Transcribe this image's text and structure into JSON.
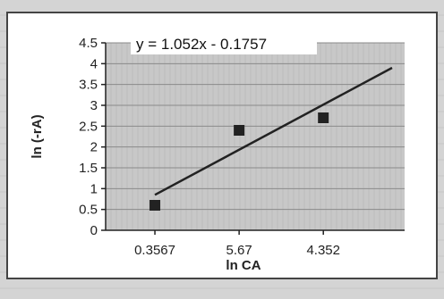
{
  "chart_data": {
    "type": "scatter",
    "categories": [
      "0.3567",
      "5.67",
      "4.352"
    ],
    "series": [
      {
        "values": [
          0.6,
          2.4,
          2.7
        ]
      }
    ],
    "trendline": {
      "equation": "y = 1.052x - 0.1757",
      "start": 0.85,
      "end": 3.9
    },
    "xlabel": "ln CA",
    "ylabel": "ln (-rA)",
    "ylim": [
      0,
      4.5
    ],
    "yticks": [
      "0",
      "0.5",
      "1",
      "1.5",
      "2",
      "2.5",
      "3",
      "3.5",
      "4",
      "4.5"
    ],
    "grid": true,
    "colors": {
      "plot_bg": "#c8c8c8",
      "marker": "#222222",
      "line": "#222222"
    }
  }
}
